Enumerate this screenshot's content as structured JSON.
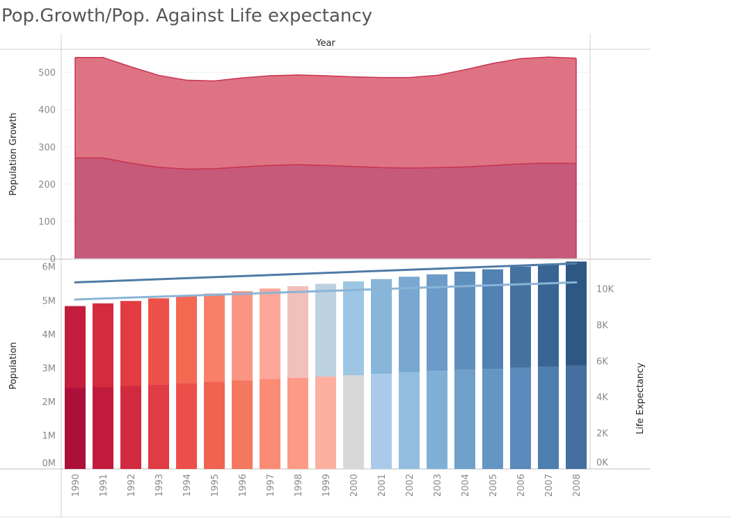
{
  "chart_data": {
    "title": "Pop.Growth/Pop. Against Life expectancy",
    "column_header": "Year",
    "years": [
      "1990",
      "1991",
      "1992",
      "1993",
      "1994",
      "1995",
      "1996",
      "1997",
      "1998",
      "1999",
      "2000",
      "2001",
      "2002",
      "2003",
      "2004",
      "2005",
      "2006",
      "2007",
      "2008"
    ],
    "top_panel": {
      "type": "area",
      "ylabel": "Population Growth",
      "ylim": [
        0,
        560
      ],
      "yticks": [
        "0",
        "100",
        "200",
        "300",
        "400",
        "500"
      ],
      "series": [
        {
          "name": "lower",
          "color": "#c65a7a",
          "values": [
            270,
            270,
            256,
            245,
            240,
            241,
            246,
            250,
            252,
            250,
            247,
            244,
            243,
            244,
            246,
            250,
            254,
            256,
            255
          ]
        },
        {
          "name": "upper_total",
          "color": "#dc6b7c",
          "values": [
            540,
            540,
            515,
            492,
            479,
            477,
            485,
            491,
            493,
            491,
            488,
            486,
            486,
            492,
            507,
            524,
            537,
            541,
            538
          ]
        }
      ],
      "line_color": "#c8324e"
    },
    "bottom_panel": {
      "type": "bar",
      "ylabel": "Population",
      "ylabel_right": "Life Expectancy",
      "ylim": [
        0,
        6200000
      ],
      "yticks": [
        "0M",
        "1M",
        "2M",
        "3M",
        "4M",
        "5M",
        "6M"
      ],
      "right_ylim": [
        0,
        11600
      ],
      "right_yticks": [
        "0K",
        "2K",
        "4K",
        "6K",
        "8K",
        "10K"
      ],
      "values_total": [
        4830000,
        4910000,
        4980000,
        5060000,
        5130000,
        5200000,
        5270000,
        5350000,
        5420000,
        5490000,
        5560000,
        5630000,
        5700000,
        5770000,
        5850000,
        5920000,
        6000000,
        6070000,
        6150000
      ],
      "values_lower": [
        2400000,
        2430000,
        2470000,
        2510000,
        2550000,
        2590000,
        2630000,
        2670000,
        2700000,
        2740000,
        2780000,
        2820000,
        2860000,
        2900000,
        2930000,
        2960000,
        3000000,
        3030000,
        3070000
      ],
      "colors_upper": [
        "#c21d3d",
        "#d42b3e",
        "#e23b41",
        "#ee5048",
        "#f46852",
        "#f8806a",
        "#fb9583",
        "#fca79a",
        "#f1c0b9",
        "#bcd1e1",
        "#9cc6e4",
        "#87b6da",
        "#78a8d2",
        "#6d9bc8",
        "#5f8fbd",
        "#5282b3",
        "#45739f",
        "#386594",
        "#2e5884"
      ],
      "colors_lower": [
        "#ac0f3a",
        "#c01b3b",
        "#d12a3e",
        "#e03c43",
        "#ec4f49",
        "#f26250",
        "#f6785f",
        "#fa8b74",
        "#fc9a85",
        "#fdb0a0",
        "#d9d6d6",
        "#a9cbe9",
        "#92bde0",
        "#80afd6",
        "#6fa0ca",
        "#6496c4",
        "#5a8abb",
        "#4e7eaf",
        "#456fa0"
      ],
      "lines": [
        {
          "name": "life_expectancy_a",
          "color": "#4f7aa6",
          "start": 10350,
          "end": 11400
        },
        {
          "name": "life_expectancy_b",
          "color": "#8ab4d6",
          "start": 9400,
          "end": 10350
        }
      ]
    }
  }
}
